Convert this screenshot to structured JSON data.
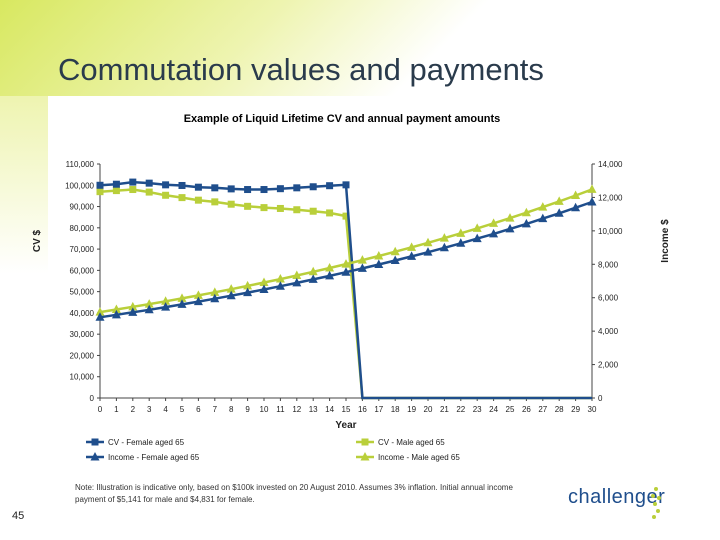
{
  "page": {
    "title": "Commutation values and payments",
    "page_number": "45",
    "note": "Note: Illustration is indicative only, based on $100k invested on 20 August 2010. Assumes 3% inflation. Initial annual income payment of $5,141 for male and $4,831 for female.",
    "logo_text": "challenger"
  },
  "colors": {
    "female": "#1f4e8c",
    "male": "#b9cf3a"
  },
  "chart_data": {
    "type": "line",
    "title": "Example of Liquid Lifetime CV and annual payment amounts",
    "xlabel": "Year",
    "ylabel": "CV $",
    "y2label": "Income $",
    "x": [
      0,
      1,
      2,
      3,
      4,
      5,
      6,
      7,
      8,
      9,
      10,
      11,
      12,
      13,
      14,
      15,
      16,
      17,
      18,
      19,
      20,
      21,
      22,
      23,
      24,
      25,
      26,
      27,
      28,
      29,
      30
    ],
    "xlim": [
      0,
      30
    ],
    "ylim": [
      0,
      110000
    ],
    "y2lim": [
      0,
      14000
    ],
    "yticks": [
      "0",
      "10,000",
      "20,000",
      "30,000",
      "40,000",
      "50,000",
      "60,000",
      "70,000",
      "80,000",
      "90,000",
      "100,000",
      "110,000"
    ],
    "y2ticks": [
      "0",
      "2,000",
      "4,000",
      "6,000",
      "8,000",
      "10,000",
      "12,000",
      "14,000"
    ],
    "grid": false,
    "legend_position": "bottom",
    "series": [
      {
        "name": "CV - Female aged 65",
        "axis": "left",
        "marker": "square",
        "values": [
          100000,
          100500,
          101500,
          101000,
          100200,
          99900,
          99100,
          98800,
          98300,
          98000,
          98000,
          98400,
          98800,
          99300,
          99800,
          100200,
          0,
          0,
          0,
          0,
          0,
          0,
          0,
          0,
          0,
          0,
          0,
          0,
          0,
          0,
          0
        ]
      },
      {
        "name": "CV - Male aged 65",
        "axis": "left",
        "marker": "square",
        "values": [
          97000,
          97500,
          98000,
          96800,
          95300,
          94200,
          93000,
          92200,
          91100,
          90100,
          89500,
          89100,
          88500,
          87800,
          87000,
          85500,
          0,
          0,
          0,
          0,
          0,
          0,
          0,
          0,
          0,
          0,
          0,
          0,
          0,
          0,
          0
        ]
      },
      {
        "name": "Income - Female aged 65",
        "axis": "right",
        "marker": "triangle",
        "values": [
          4831,
          4976,
          5125,
          5279,
          5437,
          5600,
          5768,
          5941,
          6120,
          6303,
          6493,
          6687,
          6888,
          7094,
          7307,
          7526,
          7752,
          7985,
          8224,
          8471,
          8725,
          8987,
          9256,
          9534,
          9820,
          10115,
          10418,
          10731,
          11053,
          11384,
          11726
        ]
      },
      {
        "name": "Income - Male aged 65",
        "axis": "right",
        "marker": "triangle",
        "values": [
          5141,
          5295,
          5454,
          5618,
          5786,
          5960,
          6139,
          6323,
          6512,
          6708,
          6909,
          7116,
          7330,
          7550,
          7776,
          8009,
          8250,
          8497,
          8752,
          9015,
          9285,
          9564,
          9851,
          10146,
          10451,
          10764,
          11087,
          11420,
          11762,
          12115,
          12479
        ]
      }
    ]
  }
}
